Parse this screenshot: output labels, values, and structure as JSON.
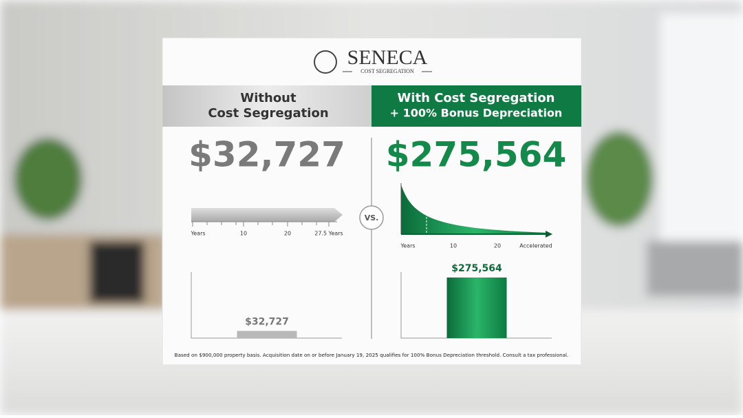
{
  "logo": {
    "name": "SENECA",
    "tagline": "COST SEGREGATION"
  },
  "left": {
    "heading": [
      "Without",
      "Cost Segregation"
    ],
    "timeline_labels": [
      "Years",
      "10",
      "20",
      "27.5 Years"
    ]
  },
  "divider": "VS.",
  "right": {
    "heading": [
      "With Cost Segregation",
      "+ 100% Bonus Depreciation"
    ],
    "timeline_labels": [
      "Years",
      "10",
      "20",
      "Accelerated"
    ]
  },
  "bars": {
    "values": [
      32727,
      275564
    ],
    "value_labels": [
      "$32,727",
      "$275,564"
    ],
    "colors": [
      "#b8b8b8",
      "#138a4a"
    ]
  },
  "footnote": "Based on $900,000 property basis. Acquisition date on or before January 19, 2025 qualifies for 100% Bonus Depreciation threshold. Consult a tax professional."
}
